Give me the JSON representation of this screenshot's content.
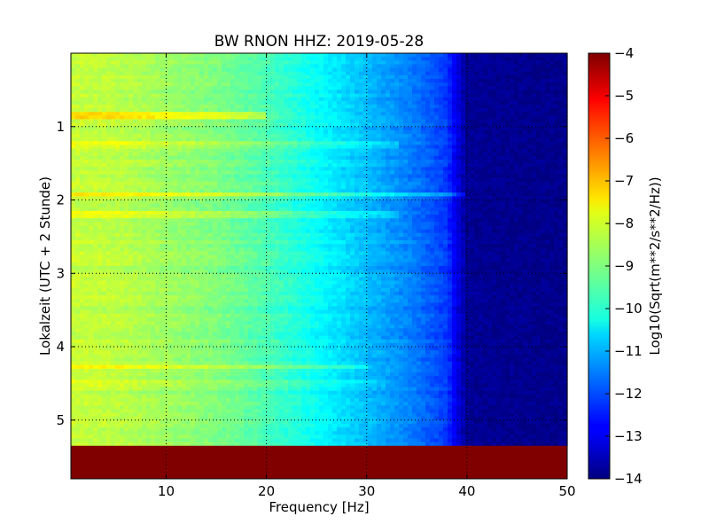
{
  "chart_data": {
    "type": "heatmap",
    "title": "BW RNON HHZ: 2019-05-28",
    "xlabel": "Frequency [Hz]",
    "ylabel": "Lokalzeit (UTC + 2 Stunde)",
    "xlim": [
      0.5,
      50
    ],
    "ylim": [
      5.8,
      0.0
    ],
    "x_ticks": [
      10,
      20,
      30,
      40,
      50
    ],
    "y_ticks": [
      1,
      2,
      3,
      4,
      5
    ],
    "grid": true,
    "colorbar": {
      "label": "Log10(Sqrt(m**2/s**2/Hz))",
      "range": [
        -14,
        -4
      ],
      "ticks": [
        -4,
        -5,
        -6,
        -7,
        -8,
        -9,
        -10,
        -11,
        -12,
        -13,
        -14
      ],
      "colormap": "jet"
    },
    "data_end_hour": 5.35,
    "no_data_value": -4,
    "spectrum_profile": {
      "frequency_hz": [
        0.5,
        5,
        10,
        15,
        20,
        25,
        30,
        35,
        38,
        40,
        50
      ],
      "log10_amplitude": [
        -8.3,
        -8.4,
        -8.7,
        -9.0,
        -9.5,
        -10.2,
        -10.9,
        -11.6,
        -12.2,
        -13.8,
        -13.9
      ]
    },
    "noise_bands_hour": [
      {
        "hour": 0.85,
        "f_max": 20,
        "delta": 0.9
      },
      {
        "hour": 1.25,
        "f_max": 33,
        "delta": 0.4
      },
      {
        "hour": 1.92,
        "f_max": 40,
        "delta": 0.8
      },
      {
        "hour": 2.2,
        "f_max": 33,
        "delta": 0.5
      },
      {
        "hour": 4.28,
        "f_max": 30,
        "delta": 0.6
      },
      {
        "hour": 4.5,
        "f_max": 32,
        "delta": 0.3
      }
    ]
  }
}
